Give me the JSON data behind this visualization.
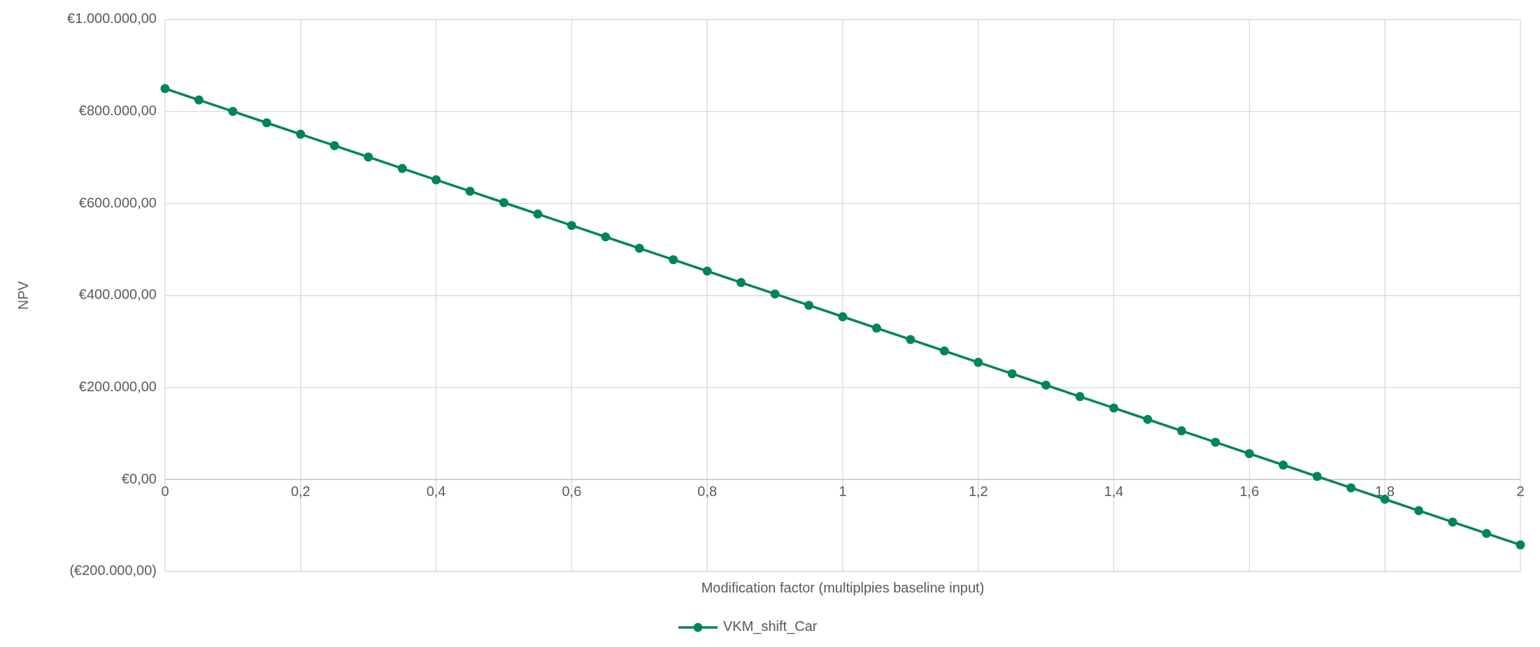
{
  "chart_data": {
    "type": "line",
    "xlabel": "Modification factor (multiplpies baseline input)",
    "ylabel": "NPV",
    "x": [
      0,
      0.05,
      0.1,
      0.15,
      0.2,
      0.25,
      0.3,
      0.35,
      0.4,
      0.45,
      0.5,
      0.55,
      0.6,
      0.65,
      0.7,
      0.75,
      0.8,
      0.85,
      0.9,
      0.95,
      1,
      1.05,
      1.1,
      1.15,
      1.2,
      1.25,
      1.3,
      1.35,
      1.4,
      1.45,
      1.5,
      1.55,
      1.6,
      1.65,
      1.7,
      1.75,
      1.8,
      1.85,
      1.9,
      1.95,
      2
    ],
    "series": [
      {
        "name": "VKM_shift_Car",
        "color": "#00845e",
        "values": [
          850000,
          825200,
          800400,
          775600,
          750800,
          726000,
          701200,
          676400,
          651600,
          626800,
          602000,
          577200,
          552400,
          527600,
          502800,
          478000,
          453200,
          428400,
          403600,
          378800,
          354000,
          329200,
          304400,
          279600,
          254800,
          230000,
          205200,
          180400,
          155600,
          130800,
          106000,
          81200,
          56400,
          31600,
          6800,
          -18000,
          -42800,
          -67600,
          -92400,
          -117200,
          -142000
        ]
      }
    ],
    "xlim": [
      0,
      2
    ],
    "xticks": [
      0,
      {
        "value": 0.2,
        "label": "0,2"
      },
      {
        "value": 0.4,
        "label": "0,4"
      },
      {
        "value": 0.6,
        "label": "0,6"
      },
      {
        "value": 0.8,
        "label": "0,8"
      },
      1,
      {
        "value": 1.2,
        "label": "1,2"
      },
      {
        "value": 1.4,
        "label": "1,4"
      },
      {
        "value": 1.6,
        "label": "1,6"
      },
      {
        "value": 1.8,
        "label": "1,8"
      },
      2
    ],
    "ylim": [
      -200000,
      1000000
    ],
    "yticks": [
      {
        "value": -200000,
        "label": "(€200.000,00)"
      },
      {
        "value": 0,
        "label": "€0,00"
      },
      {
        "value": 200000,
        "label": "€200.000,00"
      },
      {
        "value": 400000,
        "label": "€400.000,00"
      },
      {
        "value": 600000,
        "label": "€600.000,00"
      },
      {
        "value": 800000,
        "label": "€800.000,00"
      },
      {
        "value": 1000000,
        "label": "€1.000.000,00"
      }
    ],
    "grid": true,
    "legend": "bottom",
    "marker": "circle",
    "line_style": "solid"
  }
}
